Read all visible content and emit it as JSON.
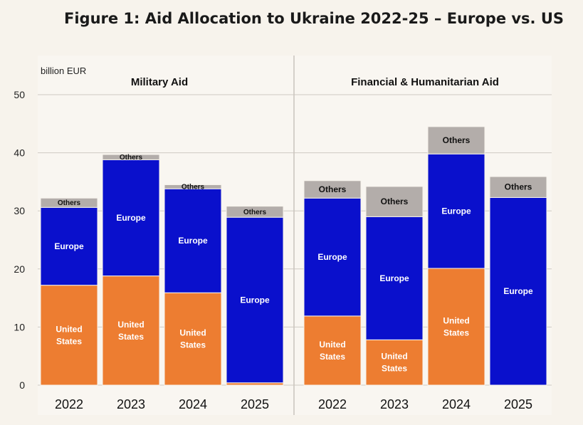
{
  "figure_title": "Figure 1: Aid Allocation to Ukraine 2022-25 – Europe vs. US",
  "colors": {
    "us": "#ed7d31",
    "europe": "#0a10cc",
    "others": "#b3adaa",
    "grid": "#cfcac3",
    "background": "#f7f3ec"
  },
  "chart_data": [
    {
      "type": "bar",
      "stacked": true,
      "title": "Military Aid",
      "unit_label": "billion EUR",
      "categories": [
        "2022",
        "2023",
        "2024",
        "2025"
      ],
      "ylim": [
        0,
        50
      ],
      "yticks": [
        "0",
        "10",
        "20",
        "30",
        "40",
        "50"
      ],
      "grid": true,
      "series": [
        {
          "name": "United States",
          "values": [
            17.2,
            18.8,
            15.9,
            0.4
          ]
        },
        {
          "name": "Europe",
          "values": [
            13.4,
            20.0,
            17.9,
            28.5
          ]
        },
        {
          "name": "Others",
          "values": [
            1.6,
            0.9,
            0.7,
            1.9
          ]
        }
      ]
    },
    {
      "type": "bar",
      "stacked": true,
      "title": "Financial & Humanitarian Aid",
      "categories": [
        "2022",
        "2023",
        "2024",
        "2025"
      ],
      "ylim": [
        0,
        50
      ],
      "grid": true,
      "series": [
        {
          "name": "United States",
          "values": [
            11.9,
            7.8,
            20.1,
            0
          ]
        },
        {
          "name": "Europe",
          "values": [
            20.3,
            21.2,
            19.7,
            32.3
          ]
        },
        {
          "name": "Others",
          "values": [
            3.0,
            5.2,
            4.7,
            3.6
          ]
        }
      ]
    }
  ]
}
